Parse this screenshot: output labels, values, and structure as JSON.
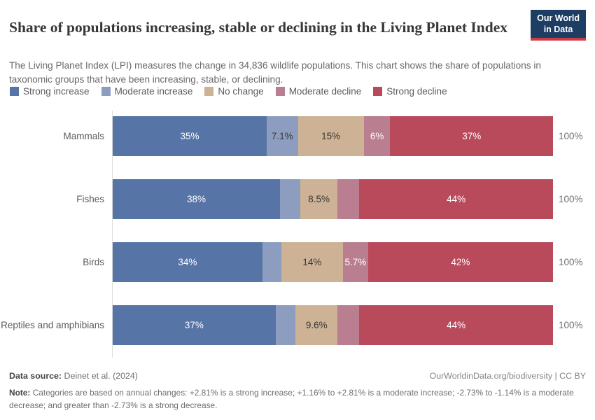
{
  "header": {
    "title": "Share of populations increasing, stable or declining in the Living Planet Index",
    "subtitle": "The Living Planet Index (LPI) measures the change in 34,836 wildlife populations. This chart shows the share of populations in taxonomic groups that have been increasing, stable, or declining.",
    "logo": {
      "line1": "Our World",
      "line2": "in Data",
      "bg_color": "#1d3d63",
      "accent_color": "#cc3b49"
    }
  },
  "chart_data": {
    "type": "bar",
    "stacked": true,
    "orientation": "horizontal",
    "unit": "%",
    "xlim": [
      0,
      100
    ],
    "categories": [
      "Mammals",
      "Fishes",
      "Birds",
      "Reptiles and amphibians"
    ],
    "series": [
      {
        "name": "Strong increase",
        "color": "#5674a6",
        "text_color": "#ffffff",
        "values": [
          35,
          38,
          34,
          37
        ],
        "labels": [
          "35%",
          "38%",
          "34%",
          "37%"
        ]
      },
      {
        "name": "Moderate increase",
        "color": "#8c9dbf",
        "text_color": "#373737",
        "values": [
          7.1,
          4.6,
          4.3,
          4.5
        ],
        "labels": [
          "7.1%",
          "",
          "",
          ""
        ]
      },
      {
        "name": "No change",
        "color": "#cdb295",
        "text_color": "#373737",
        "values": [
          15,
          8.5,
          14,
          9.6
        ],
        "labels": [
          "15%",
          "8.5%",
          "14%",
          "9.6%"
        ]
      },
      {
        "name": "Moderate decline",
        "color": "#b97e90",
        "text_color": "#ffffff",
        "values": [
          6,
          4.9,
          5.7,
          4.9
        ],
        "labels": [
          "6%",
          "",
          "5.7%",
          ""
        ]
      },
      {
        "name": "Strong decline",
        "color": "#b94a5c",
        "text_color": "#ffffff",
        "values": [
          37,
          44,
          42,
          44
        ],
        "labels": [
          "37%",
          "44%",
          "42%",
          "44%"
        ]
      }
    ],
    "row_total_label": "100%"
  },
  "footer": {
    "datasource_label": "Data source:",
    "datasource_value": " Deinet et al. (2024)",
    "link": "OurWorldinData.org/biodiversity | CC BY",
    "note_label": "Note:",
    "note_text": " Categories are based on annual changes: +2.81% is a strong increase; +1.16% to +2.81% is a moderate increase; -2.73% to -1.14% is a moderate decrease; and greater than -2.73% is a strong decrease."
  }
}
